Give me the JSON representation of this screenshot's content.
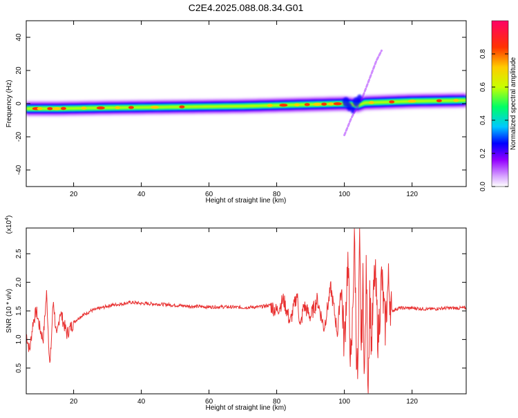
{
  "title": "C2E4.2025.088.08.34.G01",
  "chart_data": [
    {
      "type": "heatmap",
      "xlabel": "Height of straight line (km)",
      "ylabel": "Frequency (Hz)",
      "xlim": [
        6,
        136
      ],
      "ylim": [
        -50,
        50
      ],
      "xticks": [
        20,
        40,
        60,
        80,
        100,
        120
      ],
      "yticks": [
        -40,
        -20,
        0,
        20,
        40
      ],
      "xtick_labels": [
        "20",
        "40",
        "60",
        "80",
        "100",
        "120"
      ],
      "ytick_labels": [
        "-40",
        "-20",
        "0",
        "20",
        "40"
      ],
      "colorbar": {
        "label": "Normalized spectral amplitude",
        "range": [
          0,
          1
        ],
        "ticks": [
          0.0,
          0.2,
          0.4,
          0.6,
          0.8
        ],
        "tick_labels": [
          "0.0",
          "0.2",
          "0.4",
          "0.6",
          "0.8"
        ],
        "colormap": [
          "#ffffff",
          "#d9a8ff",
          "#9400ff",
          "#0000ff",
          "#00c8ff",
          "#00ff66",
          "#c8ff00",
          "#ffcc00",
          "#ff3300",
          "#ff0066"
        ]
      },
      "ridge": [
        [
          6,
          -3
        ],
        [
          15,
          -3
        ],
        [
          30,
          -2.5
        ],
        [
          50,
          -2
        ],
        [
          70,
          -1.5
        ],
        [
          90,
          -0.5
        ],
        [
          100,
          0
        ],
        [
          104,
          -1
        ],
        [
          106,
          0.5
        ],
        [
          120,
          1.5
        ],
        [
          136,
          2
        ]
      ],
      "branches": [
        {
          "x": [
            100,
            101,
            102,
            103,
            104
          ],
          "y": [
            -19,
            -14,
            -9,
            -5,
            -2
          ]
        },
        {
          "x": [
            105,
            106.5,
            108,
            109.5,
            111
          ],
          "y": [
            2,
            10,
            18,
            26,
            32
          ]
        }
      ]
    },
    {
      "type": "line",
      "xlabel": "Height of straight line (km)",
      "ylabel": "SNR (10 * v/v)",
      "y_multiplier": "(x10",
      "y_multiplier_exp": "4",
      "y_multiplier_close": ")",
      "xlim": [
        6,
        136
      ],
      "ylim": [
        0.05,
        2.95
      ],
      "xticks": [
        20,
        40,
        60,
        80,
        100,
        120
      ],
      "yticks": [
        0.5,
        1.0,
        1.5,
        2.0,
        2.5
      ],
      "xtick_labels": [
        "20",
        "40",
        "60",
        "80",
        "100",
        "120"
      ],
      "ytick_labels": [
        "0.5",
        "1.0",
        "1.5",
        "2.0",
        "2.5"
      ],
      "series": [
        {
          "color": "#e83030",
          "x": [
            6,
            7,
            8,
            9,
            10,
            11,
            12,
            13,
            14,
            15,
            16,
            18,
            20,
            22,
            25,
            28,
            31,
            34,
            37,
            40,
            45,
            50,
            55,
            60,
            65,
            70,
            75,
            78,
            80,
            82,
            84,
            86,
            87,
            88,
            90,
            92,
            94,
            96,
            98,
            99,
            100,
            101,
            102,
            103,
            103.5,
            104,
            104.5,
            105,
            105.5,
            106,
            106.5,
            107,
            107.5,
            108,
            109,
            110,
            111,
            112,
            113,
            114,
            116,
            120,
            125,
            130,
            136
          ],
          "y": [
            1.1,
            0.8,
            1.3,
            1.5,
            1.2,
            1.0,
            1.8,
            0.5,
            1.7,
            1.0,
            1.5,
            1.1,
            1.3,
            1.4,
            1.5,
            1.55,
            1.6,
            1.62,
            1.65,
            1.63,
            1.62,
            1.6,
            1.58,
            1.57,
            1.57,
            1.56,
            1.57,
            1.6,
            1.5,
            1.7,
            1.3,
            1.8,
            1.2,
            1.6,
            1.4,
            1.7,
            1.2,
            1.9,
            1.1,
            2.0,
            0.9,
            2.4,
            0.4,
            2.9,
            1.0,
            0.2,
            2.7,
            0.8,
            2.0,
            0.3,
            2.3,
            0.1,
            1.9,
            0.9,
            2.2,
            1.0,
            2.1,
            1.2,
            2.0,
            1.5,
            1.55,
            1.55,
            1.53,
            1.55,
            1.55
          ]
        }
      ]
    }
  ]
}
